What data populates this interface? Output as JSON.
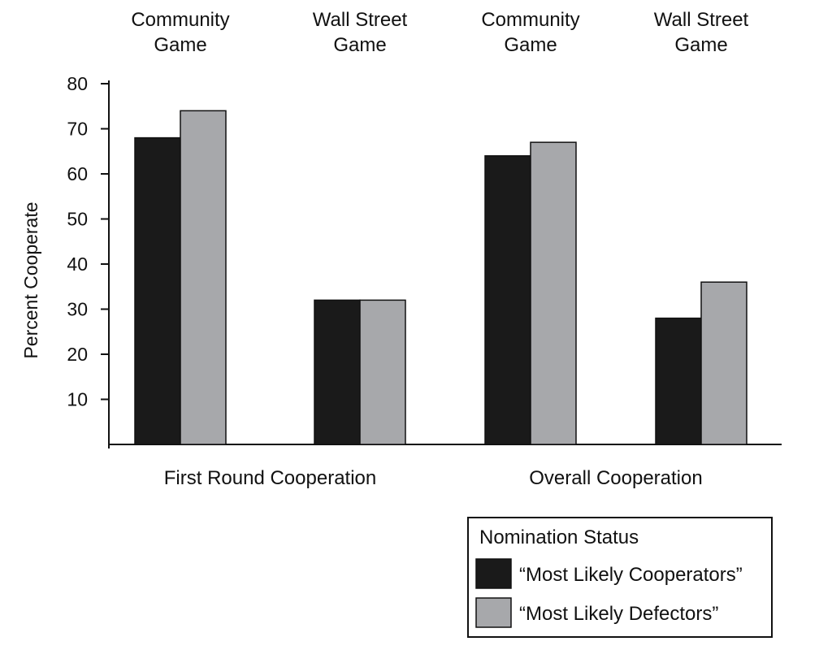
{
  "chart_data": {
    "type": "bar",
    "ylabel": "Percent Cooperate",
    "ylim": [
      0,
      80
    ],
    "yticks": [
      10,
      20,
      30,
      40,
      50,
      60,
      70,
      80
    ],
    "grid": false,
    "groups": [
      "First Round Cooperation",
      "Overall Cooperation"
    ],
    "categories": [
      {
        "game": [
          "Community",
          "Game"
        ],
        "group": "First Round Cooperation"
      },
      {
        "game": [
          "Wall Street",
          "Game"
        ],
        "group": "First Round Cooperation"
      },
      {
        "game": [
          "Community",
          "Game"
        ],
        "group": "Overall Cooperation"
      },
      {
        "game": [
          "Wall Street",
          "Game"
        ],
        "group": "Overall Cooperation"
      }
    ],
    "series": [
      {
        "name": "“Most Likely Cooperators”",
        "color": "#1a1a1a",
        "values": [
          68,
          32,
          64,
          28
        ]
      },
      {
        "name": "“Most Likely Defectors”",
        "color": "#a7a8ab",
        "values": [
          74,
          32,
          67,
          36
        ]
      }
    ],
    "legend": {
      "title": "Nomination Status",
      "position": "bottom-right"
    }
  }
}
